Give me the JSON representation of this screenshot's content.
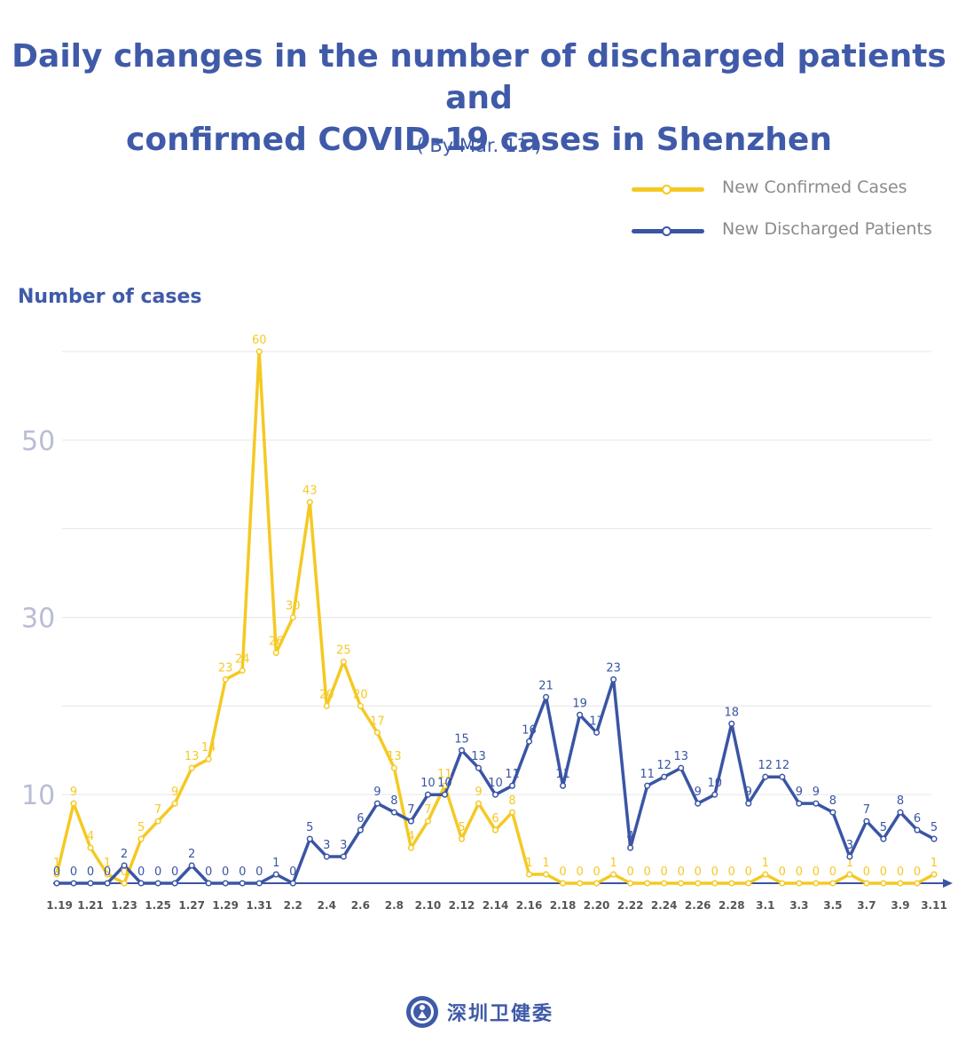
{
  "title": {
    "line1": "Daily changes in the number of discharged patients and",
    "line2": "confirmed COVID-19 cases in Shenzhen"
  },
  "subtitle": "( By Mar. 11 )",
  "footer": {
    "org_name": "深圳卫健委",
    "logo_icon": "shenzhen-health-commission-seal"
  },
  "colors": {
    "confirmed": "#f5c923",
    "discharged": "#3a55a4",
    "title": "#3f5aa8",
    "grid": "#e6e6e6",
    "ytick": "#b9bcd6",
    "xtick": "#555555",
    "legend_text": "#8b8b8b"
  },
  "chart_data": {
    "type": "line",
    "ylabel": "Number of cases",
    "xlabel": "",
    "ylim": [
      0,
      60
    ],
    "yticks": [
      10,
      30,
      50
    ],
    "grid": "horizontal",
    "legend_position": "top-right",
    "x": [
      "1.19",
      "1.20",
      "1.21",
      "1.22",
      "1.23",
      "1.24",
      "1.25",
      "1.26",
      "1.27",
      "1.28",
      "1.29",
      "1.30",
      "1.31",
      "2.1",
      "2.2",
      "2.3",
      "2.4",
      "2.5",
      "2.6",
      "2.7",
      "2.8",
      "2.9",
      "2.10",
      "2.11",
      "2.12",
      "2.13",
      "2.14",
      "2.15",
      "2.16",
      "2.17",
      "2.18",
      "2.19",
      "2.20",
      "2.21",
      "2.22",
      "2.23",
      "2.24",
      "2.25",
      "2.26",
      "2.27",
      "2.28",
      "2.29",
      "3.1",
      "3.2",
      "3.3",
      "3.4",
      "3.5",
      "3.6",
      "3.7",
      "3.8",
      "3.9",
      "3.10",
      "3.11"
    ],
    "xtick_labels": [
      "1.19",
      "1.21",
      "1.23",
      "1.25",
      "1.27",
      "1.29",
      "1.31",
      "2.2",
      "2.4",
      "2.6",
      "2.8",
      "2.10",
      "2.12",
      "2.14",
      "2.16",
      "2.18",
      "2.20",
      "2.22",
      "2.24",
      "2.26",
      "2.28",
      "3.1",
      "3.3",
      "3.5",
      "3.7",
      "3.9",
      "3.11"
    ],
    "series": [
      {
        "name": "New Confirmed Cases",
        "values": [
          1,
          9,
          4,
          1,
          0,
          5,
          7,
          9,
          13,
          14,
          23,
          24,
          60,
          26,
          30,
          43,
          20,
          25,
          20,
          17,
          13,
          4,
          7,
          11,
          5,
          9,
          6,
          8,
          1,
          1,
          0,
          0,
          0,
          1,
          0,
          0,
          0,
          0,
          0,
          0,
          0,
          0,
          1,
          0,
          0,
          0,
          0,
          1,
          0,
          0,
          0,
          0,
          1
        ]
      },
      {
        "name": "New Discharged Patients",
        "values": [
          0,
          0,
          0,
          0,
          2,
          0,
          0,
          0,
          2,
          0,
          0,
          0,
          0,
          1,
          0,
          5,
          3,
          3,
          6,
          9,
          8,
          7,
          10,
          10,
          15,
          13,
          10,
          11,
          16,
          21,
          11,
          19,
          17,
          23,
          4,
          11,
          12,
          13,
          9,
          10,
          18,
          9,
          12,
          12,
          9,
          9,
          8,
          3,
          7,
          5,
          8,
          6,
          5
        ]
      }
    ]
  }
}
